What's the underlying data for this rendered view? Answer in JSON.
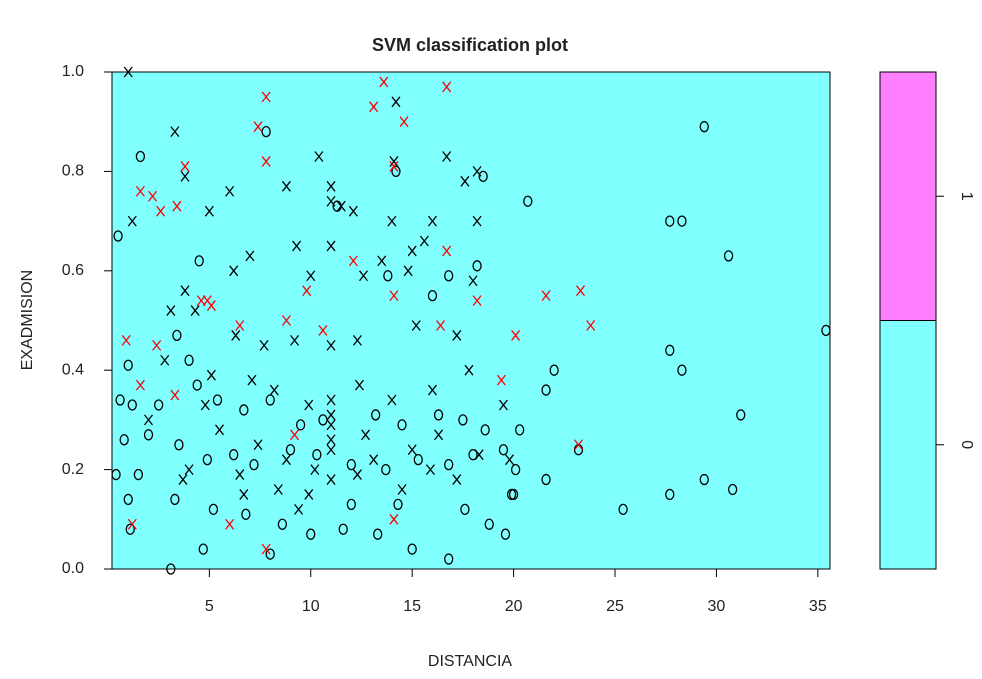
{
  "chart_data": {
    "type": "scatter",
    "title": "SVM classification plot",
    "x_label": "DISTANCIA",
    "y_label": "EXADMISION",
    "xlim": [
      0.2,
      35.6
    ],
    "ylim": [
      0,
      1
    ],
    "xticks": [
      5,
      10,
      15,
      20,
      25,
      30,
      35
    ],
    "yticks": [
      {
        "value": 0,
        "label": "0.0"
      },
      {
        "value": 0.2,
        "label": "0.2"
      },
      {
        "value": 0.4,
        "label": "0.4"
      },
      {
        "value": 0.6,
        "label": "0.6"
      },
      {
        "value": 0.8,
        "label": "0.8"
      },
      {
        "value": 1,
        "label": "1.0"
      }
    ],
    "background": "#80ffff",
    "colorbar": {
      "levels": [
        "0",
        "1"
      ],
      "colors": [
        "#80ffff",
        "#ff80ff"
      ]
    },
    "series": [
      {
        "marker": "o",
        "color": "#000000",
        "x": [
          7.8,
          1.6,
          14.2,
          18.5,
          11.3,
          0.5,
          4.5,
          16.8,
          18.2,
          13.8,
          16,
          3.4,
          4,
          1,
          0.6,
          1.2,
          2.5,
          4.4,
          5.4,
          6.7,
          8,
          9.5,
          10.6,
          13.2,
          14.5,
          16.3,
          17.5,
          18.6,
          20.3,
          21.6,
          0.8,
          2,
          3.5,
          4.9,
          6.2,
          7.2,
          9,
          10.3,
          12,
          13.7,
          15.3,
          16.8,
          18,
          19.5,
          20.1,
          0.4,
          1.5,
          3.3,
          5.2,
          6.8,
          8.6,
          10,
          11.6,
          13.3,
          15,
          16.8,
          18.8,
          19.6,
          20,
          4.7,
          8,
          3.1,
          1,
          12,
          14.3,
          17.6,
          19.9,
          1.1,
          29.4,
          27.7,
          28.3,
          30.6,
          27.7,
          28.3,
          31.2,
          35.4,
          29.4,
          30.8,
          27.7,
          25.4,
          23.2,
          20.7,
          22,
          21.6
        ],
        "values": [
          0.88,
          0.83,
          0.8,
          0.79,
          0.73,
          0.67,
          0.62,
          0.59,
          0.61,
          0.59,
          0.55,
          0.47,
          0.42,
          0.41,
          0.34,
          0.33,
          0.33,
          0.37,
          0.34,
          0.32,
          0.34,
          0.29,
          0.3,
          0.31,
          0.29,
          0.31,
          0.3,
          0.28,
          0.28,
          0.36,
          0.26,
          0.27,
          0.25,
          0.22,
          0.23,
          0.21,
          0.24,
          0.23,
          0.21,
          0.2,
          0.22,
          0.21,
          0.23,
          0.24,
          0.2,
          0.19,
          0.19,
          0.14,
          0.12,
          0.11,
          0.09,
          0.07,
          0.08,
          0.07,
          0.04,
          0.02,
          0.09,
          0.07,
          0.15,
          0.04,
          0.03,
          0,
          0.14,
          0.13,
          0.13,
          0.12,
          0.15,
          0.08,
          0.89,
          0.7,
          0.7,
          0.63,
          0.44,
          0.4,
          0.31,
          0.48,
          0.18,
          0.16,
          0.15,
          0.12,
          0.24,
          0.74,
          0.4,
          0.18
        ]
      },
      {
        "marker": "x",
        "color": "#000000",
        "x": [
          1,
          3.3,
          14.2,
          14.1,
          10.4,
          16.7,
          11,
          11,
          11.5,
          8.8,
          6,
          3.8,
          1.2,
          5,
          12.1,
          18.2,
          17.6,
          18.2,
          14,
          16,
          9.3,
          7,
          11,
          13.5,
          15,
          15.6,
          18,
          6.2,
          10,
          12.6,
          14.8,
          3.8,
          4.3,
          3.1,
          6.3,
          7.7,
          9.2,
          11,
          12.3,
          15.2,
          17.2,
          2.8,
          5.1,
          7.1,
          8.2,
          9.9,
          11,
          11,
          11,
          11,
          11,
          12.4,
          14,
          16,
          17.8,
          19.5,
          4,
          5.5,
          7.4,
          8.8,
          10.2,
          11,
          13.1,
          15,
          16.3,
          18.3,
          3.7,
          6.5,
          8.4,
          9.9,
          12.3,
          14.5,
          15.9,
          17.2,
          19.8,
          2,
          4.8,
          12.7,
          6.7,
          9.4
        ],
        "values": [
          1,
          0.88,
          0.94,
          0.82,
          0.83,
          0.83,
          0.77,
          0.74,
          0.73,
          0.77,
          0.76,
          0.79,
          0.7,
          0.72,
          0.72,
          0.8,
          0.78,
          0.7,
          0.7,
          0.7,
          0.65,
          0.63,
          0.65,
          0.62,
          0.64,
          0.66,
          0.58,
          0.6,
          0.59,
          0.59,
          0.6,
          0.56,
          0.52,
          0.52,
          0.47,
          0.45,
          0.46,
          0.45,
          0.46,
          0.49,
          0.47,
          0.42,
          0.39,
          0.38,
          0.36,
          0.33,
          0.34,
          0.31,
          0.29,
          0.26,
          0.24,
          0.37,
          0.34,
          0.36,
          0.4,
          0.33,
          0.2,
          0.28,
          0.25,
          0.22,
          0.2,
          0.18,
          0.22,
          0.24,
          0.27,
          0.23,
          0.18,
          0.19,
          0.16,
          0.15,
          0.19,
          0.16,
          0.2,
          0.18,
          0.22,
          0.3,
          0.33,
          0.27,
          0.15,
          0.12
        ]
      },
      {
        "marker": "x",
        "color": "#ff0000",
        "x": [
          23.3,
          23.8,
          21.6,
          20.1,
          23.2,
          16.7,
          13.6,
          7.8,
          13.1,
          14.6,
          7.4,
          7.8,
          14.1,
          3.8,
          1.6,
          2.2,
          2.6,
          3.4,
          4.6,
          4.9,
          5.1,
          9.8,
          12.1,
          16.7,
          14.1,
          18.2,
          0.9,
          2.4,
          1.6,
          8.8,
          6.5,
          10.6,
          14.1,
          1.2,
          6,
          7.8,
          19.4,
          16.4,
          3.3,
          9.2
        ],
        "values": [
          0.56,
          0.49,
          0.55,
          0.47,
          0.25,
          0.97,
          0.98,
          0.95,
          0.93,
          0.9,
          0.89,
          0.82,
          0.81,
          0.81,
          0.76,
          0.75,
          0.72,
          0.73,
          0.54,
          0.54,
          0.53,
          0.56,
          0.62,
          0.64,
          0.55,
          0.54,
          0.46,
          0.45,
          0.37,
          0.5,
          0.49,
          0.48,
          0.1,
          0.09,
          0.09,
          0.04,
          0.38,
          0.49,
          0.35,
          0.27
        ]
      }
    ]
  }
}
